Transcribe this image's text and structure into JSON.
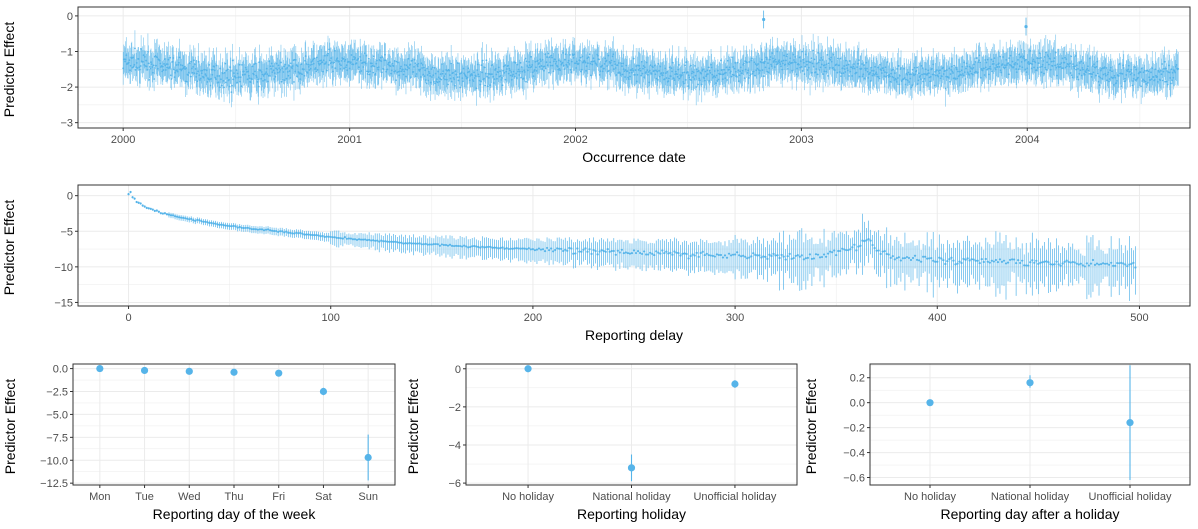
{
  "figure": {
    "point_color": "#56B4E9",
    "grid_color": "#ebebeb",
    "panel_border": "#333333",
    "tick_text_color": "#4d4d4d"
  },
  "chart_data": [
    {
      "type": "scatter",
      "title": "",
      "xlabel": "Occurrence date",
      "ylabel": "Predictor Effect",
      "x_axis": "date",
      "xlim": [
        "1999-10-20",
        "2004-09-20"
      ],
      "ylim": [
        -3.15,
        0.25
      ],
      "xticks": [
        "2000",
        "2001",
        "2002",
        "2003",
        "2004"
      ],
      "yticks": [
        "0",
        "−1",
        "−2",
        "−3"
      ],
      "series": [
        {
          "x_range": [
            "2000-01-01",
            "2004-09-01"
          ],
          "typical_estimate": -1.5,
          "typical_interval": [
            -2.2,
            -0.8
          ],
          "note_high_outliers": [
            [
              "2002-11-01",
              -0.1
            ],
            [
              "2003-12-30",
              -0.3
            ]
          ]
        }
      ],
      "grid": true
    },
    {
      "type": "scatter",
      "title": "",
      "xlabel": "Reporting delay",
      "ylabel": "Predictor Effect",
      "xlim": [
        -25,
        525
      ],
      "ylim": [
        -15.5,
        1.5
      ],
      "xticks": [
        "0",
        "100",
        "200",
        "300",
        "400",
        "500"
      ],
      "yticks": [
        "0",
        "−5",
        "−10",
        "−15"
      ],
      "series": [
        {
          "x": [
            0,
            1,
            2,
            5,
            10,
            20,
            30,
            40,
            50,
            60,
            80,
            100,
            120,
            140,
            160,
            180,
            200,
            220,
            240,
            260,
            280,
            300,
            320,
            340,
            360,
            366,
            370,
            380,
            400,
            420,
            440,
            460,
            480,
            498
          ],
          "y": [
            0.3,
            0.5,
            -0.2,
            -1.0,
            -1.8,
            -2.7,
            -3.3,
            -3.8,
            -4.3,
            -4.6,
            -5.2,
            -5.8,
            -6.3,
            -6.7,
            -7.0,
            -7.3,
            -7.5,
            -7.7,
            -7.9,
            -8.1,
            -8.3,
            -8.4,
            -8.5,
            -8.6,
            -7.2,
            -6.0,
            -7.5,
            -8.8,
            -9.0,
            -9.2,
            -9.3,
            -9.4,
            -9.5,
            -9.6
          ]
        }
      ],
      "grid": true
    },
    {
      "type": "scatter",
      "title": "",
      "xlabel": "Reporting day of the week",
      "ylabel": "Predictor Effect",
      "categories": [
        "Mon",
        "Tue",
        "Wed",
        "Thu",
        "Fri",
        "Sat",
        "Sun"
      ],
      "values": [
        0.0,
        -0.2,
        -0.3,
        -0.4,
        -0.5,
        -2.5,
        -9.7
      ],
      "intervals": [
        [
          0.0,
          0.0
        ],
        [
          -0.4,
          0.0
        ],
        [
          -0.5,
          -0.1
        ],
        [
          -0.6,
          -0.2
        ],
        [
          -0.7,
          -0.3
        ],
        [
          -2.9,
          -2.1
        ],
        [
          -12.2,
          -7.2
        ]
      ],
      "ylim": [
        -12.7,
        0.5
      ],
      "yticks": [
        "0.0",
        "−2.5",
        "−5.0",
        "−7.5",
        "−10.0",
        "−12.5"
      ],
      "grid": true
    },
    {
      "type": "scatter",
      "title": "",
      "xlabel": "Reporting holiday",
      "ylabel": "Predictor Effect",
      "categories": [
        "No holiday",
        "National holiday",
        "Unofficial holiday"
      ],
      "values": [
        0.0,
        -5.2,
        -0.8
      ],
      "intervals": [
        [
          0.0,
          0.0
        ],
        [
          -5.9,
          -4.5
        ],
        [
          -1.0,
          -0.6
        ]
      ],
      "ylim": [
        -6.1,
        0.25
      ],
      "yticks": [
        "0",
        "−2",
        "−4",
        "−6"
      ],
      "grid": true
    },
    {
      "type": "scatter",
      "title": "",
      "xlabel": "Reporting day after a holiday",
      "ylabel": "Predictor Effect",
      "categories": [
        "No holiday",
        "National holiday",
        "Unofficial holiday"
      ],
      "values": [
        0.0,
        0.16,
        -0.16
      ],
      "intervals": [
        [
          0.0,
          0.0
        ],
        [
          0.12,
          0.22
        ],
        [
          -0.62,
          0.3
        ]
      ],
      "ylim": [
        -0.66,
        0.31
      ],
      "yticks": [
        "0.2",
        "0.0",
        "−0.2",
        "−0.4",
        "−0.6"
      ],
      "grid": true
    }
  ]
}
